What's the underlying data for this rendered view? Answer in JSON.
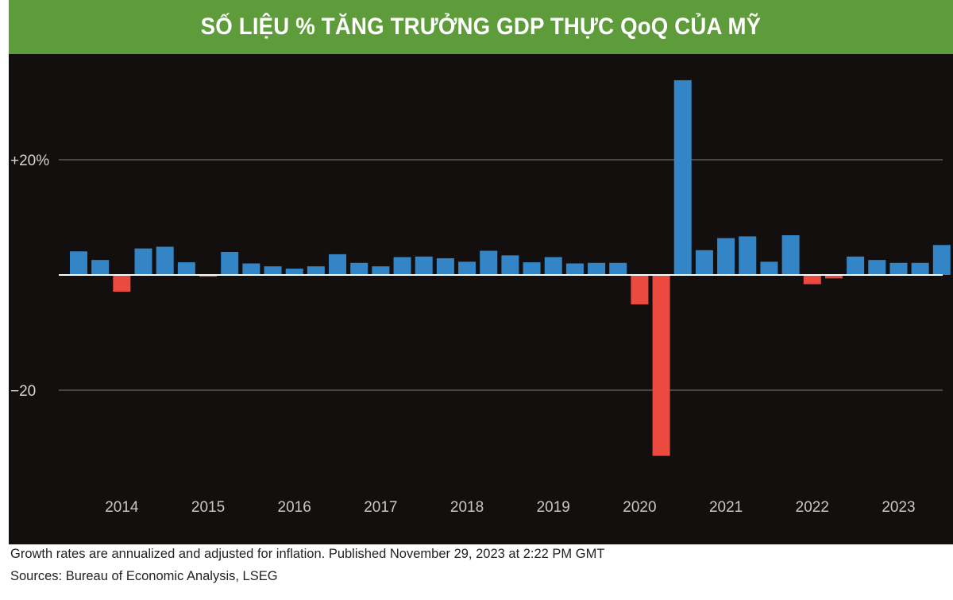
{
  "chart_data": {
    "type": "bar",
    "title": "SỐ LIỆU % TĂNG TRƯỞNG GDP THỰC QoQ CỦA MỸ",
    "xlabel": "",
    "ylabel": "",
    "ylim": [
      -37,
      37
    ],
    "grid": true,
    "y_ticks": [
      {
        "value": 20,
        "label": "+20%"
      },
      {
        "value": -20,
        "label": "−20"
      }
    ],
    "x_tick_labels": [
      "2014",
      "2015",
      "2016",
      "2017",
      "2018",
      "2019",
      "2020",
      "2021",
      "2022",
      "2023"
    ],
    "first_quarter": "2013Q3",
    "categories": [
      "2013Q3",
      "2013Q4",
      "2014Q1",
      "2014Q2",
      "2014Q3",
      "2014Q4",
      "2015Q1",
      "2015Q2",
      "2015Q3",
      "2015Q4",
      "2016Q1",
      "2016Q2",
      "2016Q3",
      "2016Q4",
      "2017Q1",
      "2017Q2",
      "2017Q3",
      "2017Q4",
      "2018Q1",
      "2018Q2",
      "2018Q3",
      "2018Q4",
      "2019Q1",
      "2019Q2",
      "2019Q3",
      "2019Q4",
      "2020Q1",
      "2020Q2",
      "2020Q3",
      "2020Q4",
      "2021Q1",
      "2021Q2",
      "2021Q3",
      "2021Q4",
      "2022Q1",
      "2022Q2",
      "2022Q3",
      "2022Q4",
      "2023Q1",
      "2023Q2",
      "2023Q3"
    ],
    "values": [
      4.1,
      2.6,
      -2.9,
      4.6,
      4.9,
      2.2,
      -0.3,
      4.0,
      2.0,
      1.5,
      1.1,
      1.5,
      3.6,
      2.1,
      1.5,
      3.1,
      3.2,
      2.9,
      2.3,
      4.2,
      3.4,
      2.2,
      3.1,
      2.0,
      2.1,
      2.1,
      -5.1,
      -31.4,
      33.8,
      4.3,
      6.4,
      6.7,
      2.3,
      6.9,
      -1.6,
      -0.6,
      3.2,
      2.6,
      2.1,
      2.1,
      5.2
    ],
    "colors": {
      "positive": "#3385c6",
      "negative": "#ea4b3e",
      "background": "#130f0e",
      "title_bar": "#5e9c3b"
    }
  },
  "footer": {
    "note": "Growth rates are annualized and adjusted for inflation. Published November 29, 2023 at 2:22 PM GMT",
    "sources": "Sources: Bureau of Economic Analysis, LSEG"
  }
}
